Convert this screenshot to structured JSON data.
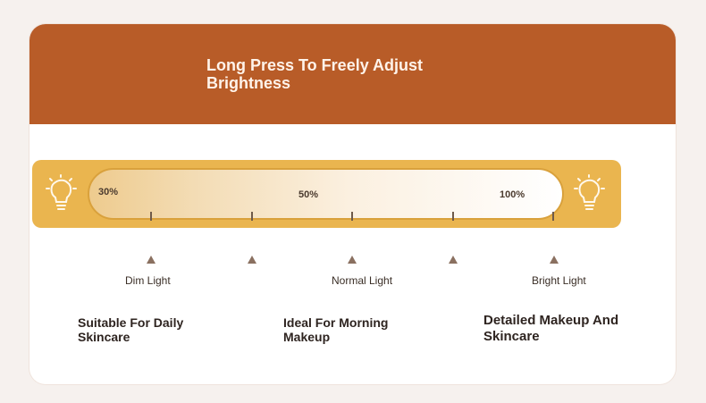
{
  "title": "Long Press To Freely Adjust Brightness",
  "bar": {
    "percentages": [
      "30%",
      "50%",
      "100%"
    ]
  },
  "levels": [
    {
      "name": "Dim Light",
      "description": "Suitable For Daily Skincare"
    },
    {
      "name": "Normal Light",
      "description": "Ideal For Morning Makeup"
    },
    {
      "name": "Bright Light",
      "description": "Detailed Makeup And Skincare"
    }
  ],
  "icons": {
    "left": "light-bulb-icon",
    "right": "light-bulb-icon"
  },
  "colors": {
    "header": "#b85c28",
    "bar": "#eab54f",
    "background": "#f6f1ee"
  }
}
